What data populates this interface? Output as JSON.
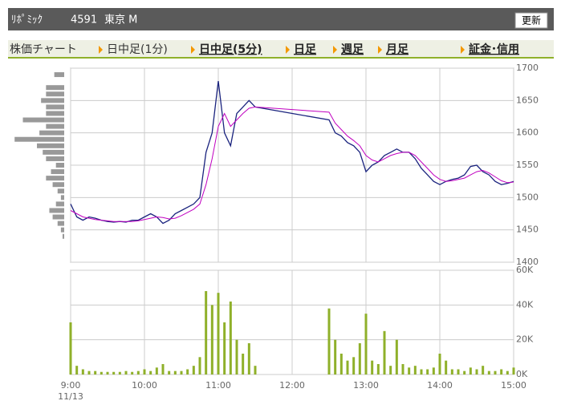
{
  "header": {
    "name": "ﾘﾎﾟﾐｯｸ",
    "code": "4591",
    "market": "東京 M",
    "button": "更新"
  },
  "tabs": [
    "株価チャート",
    "日中足(1分)",
    "日中足(5分)",
    "日足",
    "週足",
    "月足",
    "証金･信用"
  ],
  "chart_data": [
    {
      "type": "line",
      "x": [
        540,
        545,
        550,
        555,
        560,
        565,
        570,
        575,
        580,
        585,
        590,
        595,
        600,
        605,
        610,
        615,
        620,
        625,
        630,
        635,
        640,
        645,
        650,
        655,
        660,
        665,
        670,
        675,
        680,
        685,
        690,
        750,
        755,
        760,
        765,
        770,
        775,
        780,
        785,
        790,
        795,
        800,
        805,
        810,
        815,
        820,
        825,
        830,
        835,
        840,
        845,
        850,
        855,
        860,
        865,
        870,
        875,
        880,
        885,
        890,
        895,
        900
      ],
      "xlim": [
        540,
        900
      ],
      "xticks": [
        540,
        600,
        660,
        720,
        780,
        840,
        900
      ],
      "ylim": [
        1400,
        1700
      ],
      "yticks": [
        1400,
        1450,
        1500,
        1550,
        1600,
        1650,
        1700
      ],
      "grid": true,
      "series": [
        {
          "color": "#1a237e",
          "values": [
            1490,
            1470,
            1465,
            1470,
            1468,
            1465,
            1463,
            1462,
            1463,
            1462,
            1465,
            1465,
            1470,
            1475,
            1470,
            1460,
            1465,
            1475,
            1480,
            1485,
            1490,
            1500,
            1570,
            1600,
            1680,
            1600,
            1580,
            1630,
            1640,
            1650,
            1640,
            1620,
            1600,
            1595,
            1585,
            1580,
            1570,
            1540,
            1550,
            1555,
            1565,
            1570,
            1575,
            1570,
            1570,
            1560,
            1545,
            1535,
            1525,
            1520,
            1525,
            1528,
            1530,
            1535,
            1548,
            1550,
            1540,
            1535,
            1525,
            1520,
            1522,
            1525
          ]
        },
        {
          "color": "#c000c0",
          "values": [
            1480,
            1475,
            1470,
            1468,
            1466,
            1465,
            1464,
            1463,
            1463,
            1463,
            1463,
            1464,
            1466,
            1468,
            1470,
            1469,
            1467,
            1468,
            1472,
            1477,
            1482,
            1490,
            1520,
            1560,
            1610,
            1630,
            1610,
            1620,
            1630,
            1638,
            1640,
            1632,
            1615,
            1605,
            1595,
            1588,
            1580,
            1565,
            1558,
            1555,
            1560,
            1565,
            1568,
            1570,
            1570,
            1565,
            1555,
            1545,
            1535,
            1528,
            1525,
            1526,
            1528,
            1530,
            1535,
            1540,
            1542,
            1538,
            1532,
            1526,
            1523,
            1524
          ]
        }
      ],
      "volume_profile": {
        "color": "#999999",
        "prices": [
          1690,
          1670,
          1660,
          1650,
          1640,
          1630,
          1620,
          1610,
          1600,
          1590,
          1580,
          1570,
          1560,
          1550,
          1540,
          1530,
          1520,
          1510,
          1500,
          1490,
          1480,
          1470,
          1460,
          1450,
          1440
        ],
        "values": [
          12,
          22,
          22,
          28,
          22,
          22,
          50,
          22,
          30,
          60,
          33,
          26,
          22,
          10,
          16,
          22,
          14,
          8,
          4,
          10,
          18,
          14,
          8,
          4,
          2
        ]
      }
    },
    {
      "type": "bar",
      "x": [
        540,
        545,
        550,
        555,
        560,
        565,
        570,
        575,
        580,
        585,
        590,
        595,
        600,
        605,
        610,
        615,
        620,
        625,
        630,
        635,
        640,
        645,
        650,
        655,
        660,
        665,
        670,
        675,
        680,
        685,
        690,
        750,
        755,
        760,
        765,
        770,
        775,
        780,
        785,
        790,
        795,
        800,
        805,
        810,
        815,
        820,
        825,
        830,
        835,
        840,
        845,
        850,
        855,
        860,
        865,
        870,
        875,
        880,
        885,
        890,
        895,
        900
      ],
      "values": [
        30000,
        5000,
        3000,
        2000,
        2000,
        1500,
        1500,
        1500,
        1500,
        2000,
        1500,
        2000,
        3000,
        2000,
        4000,
        6000,
        2000,
        2000,
        2000,
        3000,
        5000,
        10000,
        48000,
        40000,
        47000,
        30000,
        42000,
        20000,
        12000,
        18000,
        5000,
        38000,
        20000,
        12000,
        8000,
        10000,
        18000,
        35000,
        8000,
        6000,
        25000,
        5000,
        20000,
        6000,
        4000,
        5000,
        3000,
        3000,
        4000,
        12000,
        8000,
        3000,
        3000,
        2000,
        4000,
        3000,
        5000,
        2000,
        2000,
        3000,
        2000,
        4000
      ],
      "color": "#8fb02a",
      "xlim": [
        540,
        900
      ],
      "xticks": [
        {
          "value": 540,
          "label": "9:00"
        },
        {
          "value": 600,
          "label": "10:00"
        },
        {
          "value": 660,
          "label": "11:00"
        },
        {
          "value": 720,
          "label": "12:00"
        },
        {
          "value": 780,
          "label": "13:00"
        },
        {
          "value": 840,
          "label": "14:00"
        },
        {
          "value": 900,
          "label": "15:00"
        }
      ],
      "date_label": "11/13",
      "ylim": [
        0,
        60000
      ],
      "yticks": [
        {
          "value": 0,
          "label": "0K"
        },
        {
          "value": 20000,
          "label": "20K"
        },
        {
          "value": 40000,
          "label": "40K"
        },
        {
          "value": 60000,
          "label": "60K"
        }
      ],
      "grid": true
    }
  ]
}
